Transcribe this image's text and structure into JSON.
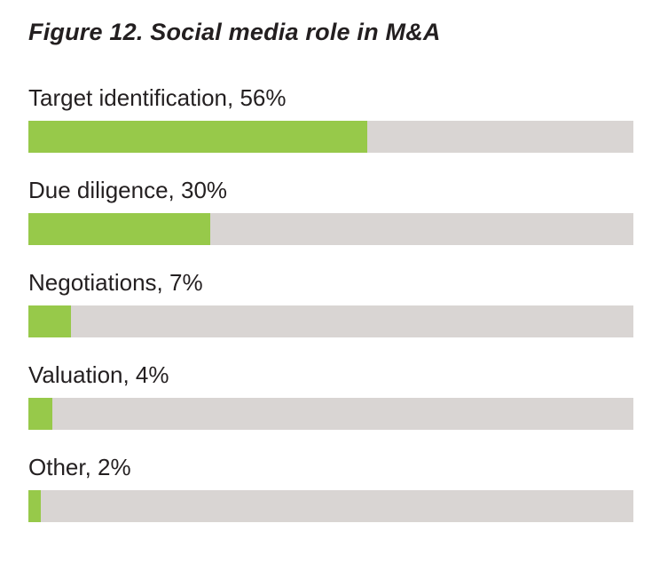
{
  "chart_data": {
    "type": "bar",
    "title": "Figure 12. Social media role in M&A",
    "categories": [
      "Target identification",
      "Due diligence",
      "Negotiations",
      "Valuation",
      "Other"
    ],
    "values": [
      56,
      30,
      7,
      4,
      2
    ],
    "labels": [
      "Target identification, 56%",
      "Due diligence, 30%",
      "Negotiations, 7%",
      "Valuation, 4%",
      "Other, 2%"
    ],
    "unit": "%",
    "ylim": [
      0,
      100
    ],
    "orientation": "horizontal",
    "colors": {
      "fill": "#97c94a",
      "track": "#d9d5d3",
      "text": "#231f20"
    }
  }
}
